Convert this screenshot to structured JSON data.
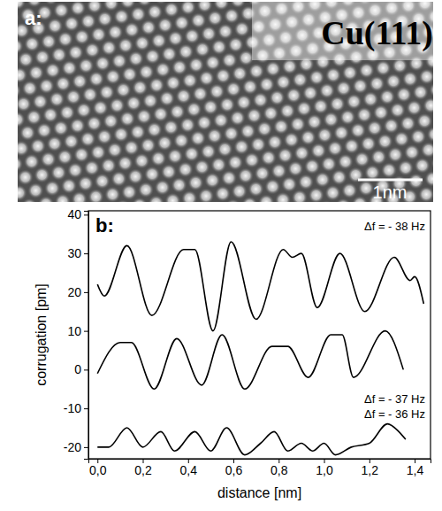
{
  "image": {
    "letter": "a:",
    "label": "Cu(111)",
    "scale_bar": "1nm"
  },
  "chart_data": {
    "type": "line",
    "panel_label": "b:",
    "x_label": "distance [nm]",
    "y_label": "corrugation [pm]",
    "xlim": [
      -0.04,
      1.47
    ],
    "ylim": [
      -23,
      41
    ],
    "xticks": [
      {
        "value": 0,
        "label": "0,0"
      },
      {
        "value": 0.2,
        "label": "0,2"
      },
      {
        "value": 0.4,
        "label": "0,4"
      },
      {
        "value": 0.6,
        "label": "0,6"
      },
      {
        "value": 0.8,
        "label": "0,8"
      },
      {
        "value": 1.0,
        "label": "1,0"
      },
      {
        "value": 1.2,
        "label": "1,2"
      },
      {
        "value": 1.4,
        "label": "1,4"
      }
    ],
    "yticks": [
      -20,
      -10,
      0,
      10,
      20,
      30,
      40
    ],
    "series": [
      {
        "name": "Δf = - 38 Hz",
        "color": "#000000",
        "x": [
          0,
          0.03,
          0.13,
          0.24,
          0.38,
          0.43,
          0.51,
          0.59,
          0.7,
          0.82,
          0.86,
          0.9,
          0.97,
          1.07,
          1.18,
          1.31,
          1.38,
          1.4,
          1.44
        ],
        "values": [
          22,
          19,
          32,
          14,
          31,
          31,
          10,
          33,
          13,
          31,
          29,
          30,
          16,
          30,
          15,
          29,
          23,
          24,
          17
        ]
      },
      {
        "name": "Δf = - 37 Hz",
        "color": "#000000",
        "x": [
          0,
          0.1,
          0.15,
          0.25,
          0.35,
          0.46,
          0.55,
          0.65,
          0.77,
          0.84,
          0.93,
          1.03,
          1.08,
          1.13,
          1.27,
          1.35
        ],
        "values": [
          -1,
          7,
          7,
          -5,
          8,
          -4,
          9,
          -5,
          6,
          6,
          -2,
          9,
          9,
          -2,
          10,
          0
        ]
      },
      {
        "name": "Δf = - 36 Hz",
        "color": "#000000",
        "x": [
          0,
          0.05,
          0.13,
          0.2,
          0.28,
          0.34,
          0.43,
          0.5,
          0.57,
          0.65,
          0.72,
          0.78,
          0.84,
          0.9,
          0.95,
          1.0,
          1.05,
          1.12,
          1.2,
          1.28,
          1.33,
          1.36
        ],
        "values": [
          -20,
          -20,
          -15,
          -20,
          -16,
          -21,
          -16,
          -21,
          -15,
          -22,
          -19,
          -16,
          -21,
          -19,
          -21,
          -19,
          -22,
          -20,
          -19,
          -14,
          -16,
          -18
        ]
      }
    ]
  }
}
